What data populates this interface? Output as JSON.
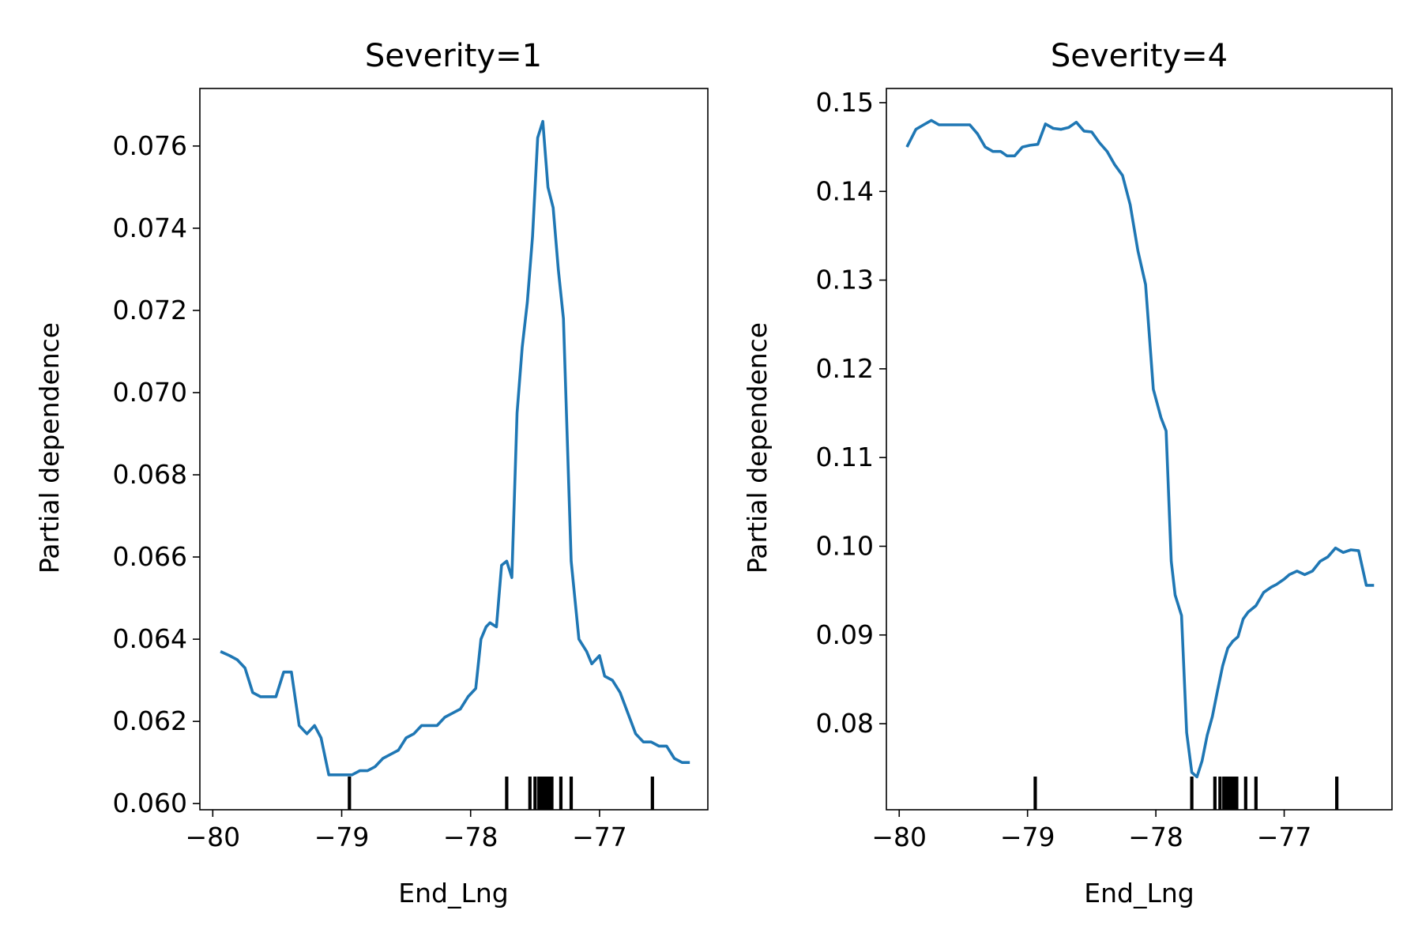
{
  "chart_data": [
    {
      "type": "line",
      "title": "Severity=1",
      "xlabel": "End_Lng",
      "ylabel": "Partial dependence",
      "xlim": [
        -80.1,
        -76.16
      ],
      "ylim": [
        59.85,
        0.0774
      ],
      "xticks": [
        -80,
        -79,
        -78,
        -77
      ],
      "xtick_labels": [
        "−80",
        "−79",
        "−78",
        "−77"
      ],
      "yticks": [
        0.06,
        0.062,
        0.064,
        0.066,
        0.068,
        0.07,
        0.072,
        0.074,
        0.076
      ],
      "ytick_labels": [
        "0.060",
        "0.062",
        "0.064",
        "0.066",
        "0.068",
        "0.070",
        "0.072",
        "0.074",
        "0.076"
      ],
      "grid": false,
      "line_color": "#1f77b4",
      "series": [
        {
          "x": [
            -79.94,
            -79.87,
            -79.81,
            -79.75,
            -79.69,
            -79.63,
            -79.57,
            -79.51,
            -79.45,
            -79.39,
            -79.33,
            -79.27,
            -79.21,
            -79.16,
            -79.1,
            -79.04,
            -78.98,
            -78.92,
            -78.86,
            -78.8,
            -78.74,
            -78.68,
            -78.62,
            -78.56,
            -78.5,
            -78.44,
            -78.38,
            -78.32,
            -78.26,
            -78.2,
            -78.14,
            -78.08,
            -78.02,
            -77.96,
            -77.92,
            -77.88,
            -77.85,
            -77.8,
            -77.76,
            -77.72,
            -77.68,
            -77.64,
            -77.6,
            -77.56,
            -77.52,
            -77.48,
            -77.44,
            -77.4,
            -77.36,
            -77.32,
            -77.28,
            -77.22,
            -77.16,
            -77.1,
            -77.06,
            -77.0,
            -76.96,
            -76.9,
            -76.84,
            -76.78,
            -76.72,
            -76.66,
            -76.6,
            -76.54,
            -76.48,
            -76.42,
            -76.36,
            -76.3
          ],
          "y": [
            0.0637,
            0.0636,
            0.0635,
            0.0633,
            0.0627,
            0.0626,
            0.0626,
            0.0626,
            0.0632,
            0.0632,
            0.0619,
            0.0617,
            0.0619,
            0.0616,
            0.0607,
            0.0607,
            0.0607,
            0.0607,
            0.0608,
            0.0608,
            0.0609,
            0.0611,
            0.0612,
            0.0613,
            0.0616,
            0.0617,
            0.0619,
            0.0619,
            0.0619,
            0.0621,
            0.0622,
            0.0623,
            0.0626,
            0.0628,
            0.064,
            0.0643,
            0.0644,
            0.0643,
            0.0658,
            0.0659,
            0.0655,
            0.0695,
            0.0711,
            0.0722,
            0.0738,
            0.0762,
            0.0766,
            0.075,
            0.0745,
            0.073,
            0.0718,
            0.0659,
            0.064,
            0.0637,
            0.0634,
            0.0636,
            0.0631,
            0.063,
            0.0627,
            0.0622,
            0.0617,
            0.0615,
            0.0615,
            0.0614,
            0.0614,
            0.0611,
            0.061,
            0.061
          ]
        }
      ],
      "rug": [
        -78.94,
        -77.72,
        -77.54,
        -77.5,
        -77.47,
        -77.45,
        -77.43,
        -77.41,
        -77.39,
        -77.37,
        -77.3,
        -77.22,
        -76.59
      ]
    },
    {
      "type": "line",
      "title": "Severity=4",
      "xlabel": "End_Lng",
      "ylabel": "Partial dependence",
      "xlim": [
        -80.1,
        -76.16
      ],
      "ylim": [
        0.0703,
        0.152
      ],
      "xticks": [
        -80,
        -79,
        -78,
        -77
      ],
      "xtick_labels": [
        "−80",
        "−79",
        "−78",
        "−77"
      ],
      "yticks": [
        0.08,
        0.09,
        0.1,
        0.11,
        0.12,
        0.13,
        0.14,
        0.15
      ],
      "ytick_labels": [
        "0.08",
        "0.09",
        "0.10",
        "0.11",
        "0.12",
        "0.13",
        "0.14",
        "0.15"
      ],
      "grid": false,
      "line_color": "#1f77b4",
      "series": [
        {
          "x": [
            -79.94,
            -79.87,
            -79.81,
            -79.75,
            -79.69,
            -79.63,
            -79.57,
            -79.51,
            -79.45,
            -79.39,
            -79.33,
            -79.27,
            -79.21,
            -79.16,
            -79.1,
            -79.04,
            -78.98,
            -78.92,
            -78.86,
            -78.8,
            -78.74,
            -78.68,
            -78.62,
            -78.56,
            -78.5,
            -78.44,
            -78.38,
            -78.32,
            -78.26,
            -78.2,
            -78.14,
            -78.08,
            -78.02,
            -77.96,
            -77.92,
            -77.88,
            -77.85,
            -77.8,
            -77.76,
            -77.72,
            -77.68,
            -77.64,
            -77.6,
            -77.56,
            -77.52,
            -77.48,
            -77.44,
            -77.4,
            -77.36,
            -77.32,
            -77.28,
            -77.22,
            -77.16,
            -77.1,
            -77.06,
            -77.0,
            -76.96,
            -76.9,
            -76.84,
            -76.78,
            -76.72,
            -76.66,
            -76.6,
            -76.54,
            -76.48,
            -76.42,
            -76.36,
            -76.3
          ],
          "y": [
            0.145,
            0.147,
            0.1475,
            0.148,
            0.1475,
            0.1475,
            0.1475,
            0.1475,
            0.1475,
            0.1465,
            0.145,
            0.1445,
            0.1445,
            0.144,
            0.144,
            0.145,
            0.1452,
            0.1453,
            0.1476,
            0.1471,
            0.147,
            0.1472,
            0.1478,
            0.1468,
            0.1467,
            0.1455,
            0.1445,
            0.143,
            0.1418,
            0.1385,
            0.1333,
            0.1295,
            0.1177,
            0.1145,
            0.113,
            0.0983,
            0.0945,
            0.0922,
            0.079,
            0.0745,
            0.074,
            0.0758,
            0.0787,
            0.0808,
            0.0837,
            0.0865,
            0.0885,
            0.0893,
            0.0898,
            0.0918,
            0.0926,
            0.0933,
            0.0948,
            0.0954,
            0.0957,
            0.0963,
            0.0968,
            0.0972,
            0.0968,
            0.0972,
            0.0983,
            0.0988,
            0.0998,
            0.0993,
            0.0996,
            0.0995,
            0.0956,
            0.0956
          ]
        }
      ],
      "rug": [
        -78.94,
        -77.72,
        -77.54,
        -77.5,
        -77.47,
        -77.45,
        -77.43,
        -77.41,
        -77.39,
        -77.37,
        -77.3,
        -77.22,
        -76.59
      ]
    }
  ]
}
